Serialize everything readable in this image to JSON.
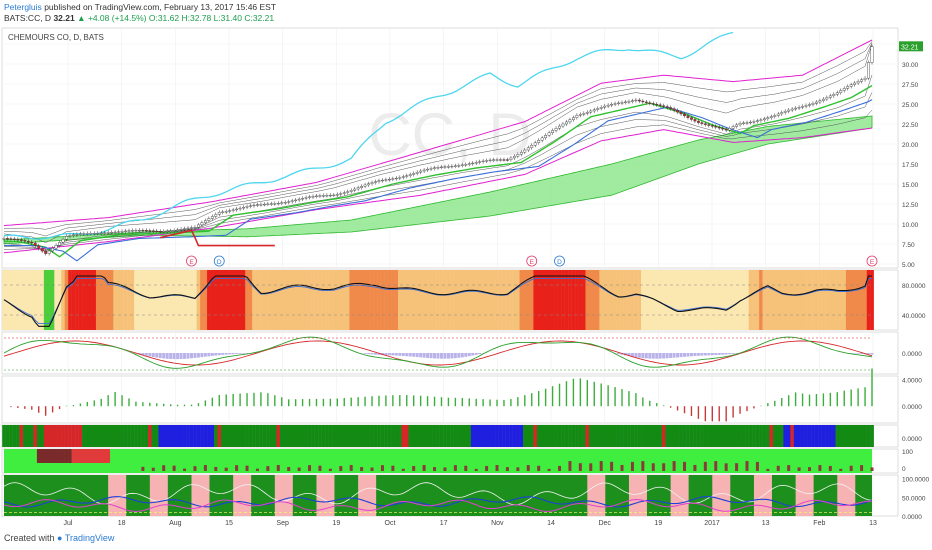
{
  "header": {
    "user": "Petergluis",
    "published": "published on TradingView.com, February 13, 2017 15:46 EST",
    "symbol": "BATS:CC, D",
    "last": "32.21",
    "change": "▲ +4.08 (+14.5%)",
    "ohlc": "O:31.62 H:32.78 L:31.40 C:32.21"
  },
  "chart_title": "CHEMOURS CO, D, BATS",
  "watermark": "CC, D",
  "last_price_label": "32.21",
  "footer": {
    "created": "Created with",
    "brand": "TradingView"
  },
  "colors": {
    "up": "#2ca02c",
    "down": "#d62728",
    "cyan": "#4dd6f0",
    "magenta": "#e020d0",
    "cloud": "#8fe88f",
    "bullish_bar": "#138a13",
    "bearish_bar": "#1f1fe0",
    "heat_hot": "#e8221b",
    "heat_warm": "#f08a4b"
  },
  "icons": [
    "earnings-marker-icon",
    "dividend-marker-icon",
    "tradingview-logo-icon"
  ],
  "chart_data": {
    "type": "line",
    "x_axis_ticks": [
      "Jul",
      "18",
      "Aug",
      "15",
      "Sep",
      "19",
      "Oct",
      "17",
      "Nov",
      "14",
      "Dec",
      "19",
      "2017",
      "13",
      "Feb",
      "13"
    ],
    "panels": [
      {
        "name": "price",
        "y_ticks": [
          "32.50",
          "30.00",
          "27.50",
          "25.00",
          "22.50",
          "20.00",
          "17.50",
          "15.00",
          "12.50",
          "10.00",
          "7.50",
          "5.00"
        ],
        "ylim": [
          4.5,
          34.5
        ],
        "close_anchors": [
          [
            0,
            8.2
          ],
          [
            8,
            7.5
          ],
          [
            12,
            6.3
          ],
          [
            18,
            8.3
          ],
          [
            30,
            9.1
          ],
          [
            45,
            9.3
          ],
          [
            55,
            9.5
          ],
          [
            62,
            11.5
          ],
          [
            75,
            12.3
          ],
          [
            85,
            13.1
          ],
          [
            95,
            13.8
          ],
          [
            108,
            15.4
          ],
          [
            120,
            16.5
          ],
          [
            132,
            17.4
          ],
          [
            145,
            18.1
          ],
          [
            155,
            20.8
          ],
          [
            165,
            23.8
          ],
          [
            175,
            24.8
          ],
          [
            182,
            25.5
          ],
          [
            192,
            24.2
          ],
          [
            200,
            22.8
          ],
          [
            208,
            21.7
          ],
          [
            212,
            22.7
          ],
          [
            222,
            23.6
          ],
          [
            232,
            25.0
          ],
          [
            240,
            26.2
          ],
          [
            248,
            28.2
          ],
          [
            250,
            32.2
          ]
        ],
        "bb_upper_anchors": [
          [
            0,
            9.8
          ],
          [
            30,
            10.8
          ],
          [
            60,
            12.8
          ],
          [
            90,
            15.2
          ],
          [
            120,
            19.0
          ],
          [
            150,
            22.8
          ],
          [
            172,
            27.6
          ],
          [
            190,
            28.6
          ],
          [
            210,
            27.8
          ],
          [
            230,
            28.6
          ],
          [
            250,
            33.0
          ]
        ],
        "bb_lower_anchors": [
          [
            0,
            6.4
          ],
          [
            30,
            7.8
          ],
          [
            60,
            9.5
          ],
          [
            90,
            11.8
          ],
          [
            120,
            13.6
          ],
          [
            150,
            16.2
          ],
          [
            172,
            20.4
          ],
          [
            190,
            21.8
          ],
          [
            210,
            20.2
          ],
          [
            230,
            20.8
          ],
          [
            250,
            22.0
          ]
        ],
        "cyan_anchors": [
          [
            0,
            8.0
          ],
          [
            20,
            8.8
          ],
          [
            40,
            10.5
          ],
          [
            60,
            13.5
          ],
          [
            80,
            16.2
          ],
          [
            100,
            18.0
          ],
          [
            110,
            22.5
          ],
          [
            125,
            26.0
          ],
          [
            140,
            29.0
          ],
          [
            148,
            27.5
          ],
          [
            165,
            30.5
          ],
          [
            180,
            32.0
          ],
          [
            195,
            31.2
          ],
          [
            210,
            34.0
          ]
        ],
        "cloud_upper_anchors": [
          [
            0,
            8.0
          ],
          [
            40,
            9.0
          ],
          [
            70,
            9.4
          ],
          [
            100,
            10.5
          ],
          [
            140,
            14.0
          ],
          [
            175,
            17.5
          ],
          [
            200,
            20.5
          ],
          [
            220,
            22.2
          ],
          [
            250,
            23.5
          ]
        ],
        "cloud_lower_anchors": [
          [
            0,
            7.5
          ],
          [
            40,
            8.6
          ],
          [
            70,
            8.4
          ],
          [
            100,
            9.0
          ],
          [
            140,
            11.0
          ],
          [
            175,
            13.6
          ],
          [
            200,
            17.5
          ],
          [
            220,
            20.0
          ],
          [
            250,
            22.0
          ]
        ],
        "earnings_markers": [
          54,
          152,
          250
        ],
        "dividend_markers": [
          62,
          160
        ]
      },
      {
        "name": "oscillator-heatmap",
        "y_ticks": [
          "80.0000",
          "40.0000"
        ],
        "ylim": [
          20,
          100
        ]
      },
      {
        "name": "momentum-lines",
        "y_ticks": [
          "0.0000"
        ],
        "ylim": [
          -1,
          1
        ]
      },
      {
        "name": "histogram",
        "y_ticks": [
          "4.0000",
          "0.0000"
        ],
        "ylim": [
          -2.5,
          4.5
        ]
      },
      {
        "name": "trend-state-strip",
        "y_ticks": [
          "0.0000"
        ],
        "ylim": [
          0,
          1
        ]
      },
      {
        "name": "volume-pressure",
        "y_ticks": [
          "100",
          "0"
        ],
        "ylim": [
          0,
          100
        ]
      },
      {
        "name": "multi-line-oscillator",
        "y_ticks": [
          "100.0000",
          "50.0000",
          "0.0000"
        ],
        "ylim": [
          0,
          110
        ]
      }
    ]
  }
}
